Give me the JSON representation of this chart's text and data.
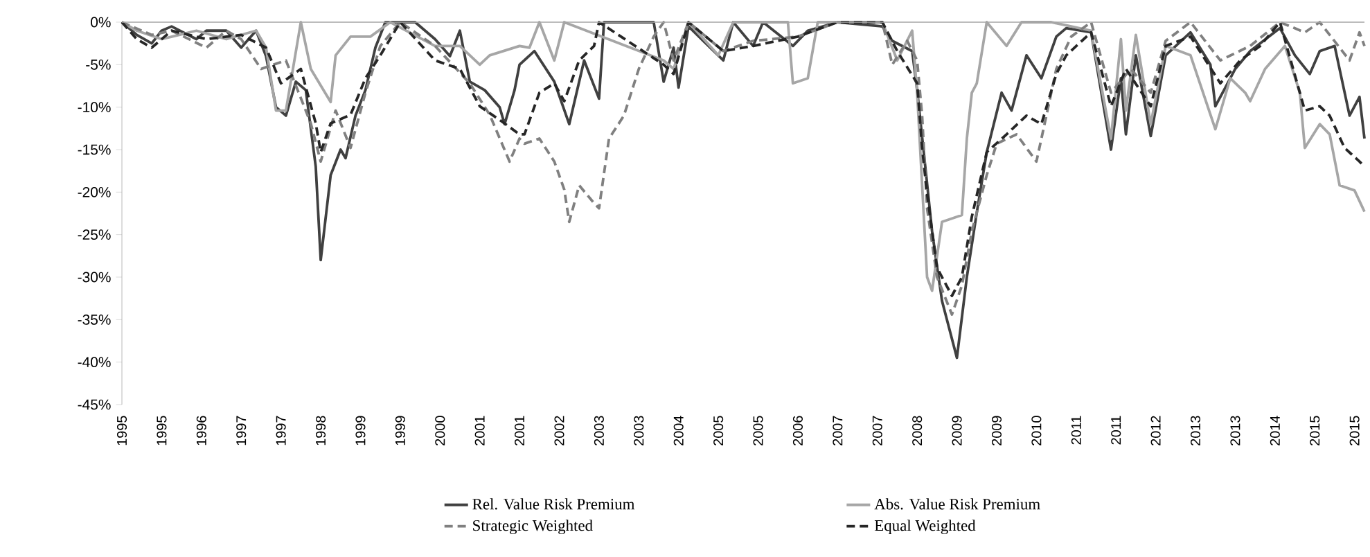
{
  "chart_data": {
    "type": "line",
    "legend": "bottom",
    "xlim": [
      "1995-01",
      "2015-11"
    ],
    "ylim": [
      -45,
      0
    ],
    "xticks": [
      {
        "value": "1995-01",
        "label": "1995"
      },
      {
        "value": "1995-09",
        "label": "1995"
      },
      {
        "value": "1996-05",
        "label": "1996"
      },
      {
        "value": "1997-01",
        "label": "1997"
      },
      {
        "value": "1997-09",
        "label": "1997"
      },
      {
        "value": "1998-05",
        "label": "1998"
      },
      {
        "value": "1999-01",
        "label": "1999"
      },
      {
        "value": "1999-09",
        "label": "1999"
      },
      {
        "value": "2000-05",
        "label": "2000"
      },
      {
        "value": "2001-01",
        "label": "2001"
      },
      {
        "value": "2001-09",
        "label": "2001"
      },
      {
        "value": "2002-05",
        "label": "2002"
      },
      {
        "value": "2003-01",
        "label": "2003"
      },
      {
        "value": "2003-09",
        "label": "2003"
      },
      {
        "value": "2004-05",
        "label": "2004"
      },
      {
        "value": "2005-01",
        "label": "2005"
      },
      {
        "value": "2005-09",
        "label": "2005"
      },
      {
        "value": "2006-05",
        "label": "2006"
      },
      {
        "value": "2007-01",
        "label": "2007"
      },
      {
        "value": "2007-09",
        "label": "2007"
      },
      {
        "value": "2008-05",
        "label": "2008"
      },
      {
        "value": "2009-01",
        "label": "2009"
      },
      {
        "value": "2009-09",
        "label": "2009"
      },
      {
        "value": "2010-05",
        "label": "2010"
      },
      {
        "value": "2011-01",
        "label": "2011"
      },
      {
        "value": "2011-09",
        "label": "2011"
      },
      {
        "value": "2012-05",
        "label": "2012"
      },
      {
        "value": "2013-01",
        "label": "2013"
      },
      {
        "value": "2013-09",
        "label": "2013"
      },
      {
        "value": "2014-05",
        "label": "2014"
      },
      {
        "value": "2015-01",
        "label": "2015"
      },
      {
        "value": "2015-09",
        "label": "2015"
      }
    ],
    "yticks": [
      {
        "value": 0,
        "label": "0%"
      },
      {
        "value": -5,
        "label": "-5%"
      },
      {
        "value": -10,
        "label": "-10%"
      },
      {
        "value": -15,
        "label": "-15%"
      },
      {
        "value": -20,
        "label": "-20%"
      },
      {
        "value": -25,
        "label": "-25%"
      },
      {
        "value": -30,
        "label": "-30%"
      },
      {
        "value": -35,
        "label": "-35%"
      },
      {
        "value": -40,
        "label": "-40%"
      },
      {
        "value": -45,
        "label": "-45%"
      }
    ],
    "series": [
      {
        "name": "Rel. Value Risk Premium",
        "color": "#404040",
        "line_style": "solid",
        "x": [
          "1995-01",
          "1995-04",
          "1995-07",
          "1995-09",
          "1995-11",
          "1996-04",
          "1996-06",
          "1996-10",
          "1997-01",
          "1997-04",
          "1997-06",
          "1997-08",
          "1997-10",
          "1997-12",
          "1998-02",
          "1998-04",
          "1998-05",
          "1998-07",
          "1998-09",
          "1998-10",
          "1998-12",
          "1999-02",
          "1999-04",
          "1999-06",
          "1999-12",
          "2000-04",
          "2000-07",
          "2000-09",
          "2000-11",
          "2001-02",
          "2001-05",
          "2001-06",
          "2001-08",
          "2001-09",
          "2001-12",
          "2002-04",
          "2002-07",
          "2002-10",
          "2003-01",
          "2003-02",
          "2003-05",
          "2003-12",
          "2004-02",
          "2004-04",
          "2004-05",
          "2004-07",
          "2005-02",
          "2005-04",
          "2005-08",
          "2005-10",
          "2006-04",
          "2006-07",
          "2007-01",
          "2007-10",
          "2007-12",
          "2008-04",
          "2008-05",
          "2008-07",
          "2008-08",
          "2008-10",
          "2009-01",
          "2009-03",
          "2009-05",
          "2009-07",
          "2009-10",
          "2009-12",
          "2010-03",
          "2010-06",
          "2010-09",
          "2010-11",
          "2011-04",
          "2011-08",
          "2011-10",
          "2011-11",
          "2012-01",
          "2012-04",
          "2012-07",
          "2012-12",
          "2013-04",
          "2013-05",
          "2013-09",
          "2013-12",
          "2014-06",
          "2014-09",
          "2014-12",
          "2015-02",
          "2015-05",
          "2015-08",
          "2015-10",
          "2015-11"
        ],
        "values": [
          0,
          -1.5,
          -2.5,
          -1,
          -0.5,
          -2,
          -1,
          -1,
          -3,
          -1,
          -4,
          -10,
          -11,
          -7,
          -8,
          -17,
          -28,
          -18,
          -15,
          -16,
          -11,
          -8,
          -3,
          0,
          0,
          -2,
          -4,
          -1,
          -7,
          -8,
          -10,
          -12,
          -8,
          -5,
          -3.4,
          -7,
          -12,
          -4.5,
          -9,
          0,
          0,
          0,
          -7,
          -3,
          -7.7,
          -0.5,
          -4.5,
          0,
          -2.8,
          0,
          -2.8,
          -1,
          0,
          -0.5,
          -2.2,
          -3.4,
          -8,
          -19,
          -24.6,
          -32.8,
          -39.5,
          -30,
          -22.4,
          -15.3,
          -8.3,
          -10.4,
          -3.9,
          -6.6,
          -1.7,
          -0.7,
          -1.2,
          -15,
          -6.6,
          -13.2,
          -3.9,
          -13.4,
          -3.9,
          -1.2,
          -5,
          -9.9,
          -5.5,
          -3.4,
          -0.7,
          -3.9,
          -6.1,
          -3.4,
          -2.8,
          -11,
          -8.8,
          -13.7
        ]
      },
      {
        "name": "Abs. Value Risk Premium",
        "color": "#a6a6a6",
        "line_style": "solid",
        "x": [
          "1995-01",
          "1995-04",
          "1995-09",
          "1996-04",
          "1996-10",
          "1997-04",
          "1997-06",
          "1997-08",
          "1997-10",
          "1998-01",
          "1998-03",
          "1998-07",
          "1998-08",
          "1998-11",
          "1999-03",
          "1999-07",
          "2000-04",
          "2000-09",
          "2001-01",
          "2001-03",
          "2001-09",
          "2001-11",
          "2002-01",
          "2002-04",
          "2002-06",
          "2004-02",
          "2004-04",
          "2004-07",
          "2005-01",
          "2005-04",
          "2006-03",
          "2006-04",
          "2006-07",
          "2006-09",
          "2007-10",
          "2008-01",
          "2008-04",
          "2008-05",
          "2008-07",
          "2008-08",
          "2008-10",
          "2009-02",
          "2009-03",
          "2009-04",
          "2009-05",
          "2009-07",
          "2009-11",
          "2010-02",
          "2010-08",
          "2011-04",
          "2011-08",
          "2011-10",
          "2011-11",
          "2012-01",
          "2012-04",
          "2012-07",
          "2012-12",
          "2013-05",
          "2013-08",
          "2013-11",
          "2013-12",
          "2014-03",
          "2014-07",
          "2014-10",
          "2014-11",
          "2015-02",
          "2015-04",
          "2015-06",
          "2015-09",
          "2015-11"
        ],
        "values": [
          0,
          -1,
          -2,
          -1,
          -2,
          -1,
          -3,
          -10.4,
          -10.4,
          0,
          -5.5,
          -9.4,
          -3.9,
          -1.7,
          -1.7,
          0,
          -2.8,
          -2.8,
          -5,
          -3.9,
          -2.8,
          -3,
          0,
          -4.5,
          0,
          -4.5,
          -5.5,
          0,
          -3.9,
          0,
          0,
          -7.2,
          -6.6,
          0,
          0,
          -4.5,
          -1,
          -8.3,
          -30,
          -31.6,
          -23.5,
          -22.7,
          -13.7,
          -8.3,
          -7.2,
          0,
          -2.8,
          0,
          0,
          -1,
          -13.7,
          -2,
          -10.4,
          -1.5,
          -12,
          -2.8,
          -3.9,
          -12.6,
          -6.6,
          -8.3,
          -9.3,
          -5.5,
          -2.8,
          -8.3,
          -14.8,
          -12,
          -13.2,
          -19.2,
          -19.8,
          -22.3
        ]
      },
      {
        "name": "Strategic Weighted",
        "color": "#808080",
        "line_style": "dashed",
        "x": [
          "1995-01",
          "1995-07",
          "1995-11",
          "1996-06",
          "1996-10",
          "1997-01",
          "1997-05",
          "1997-10",
          "1998-03",
          "1998-05",
          "1998-08",
          "1998-11",
          "1999-02",
          "1999-05",
          "1999-09",
          "2000-04",
          "2000-11",
          "2001-03",
          "2001-07",
          "2001-09",
          "2001-10",
          "2002-01",
          "2002-04",
          "2002-06",
          "2002-07",
          "2002-09",
          "2002-12",
          "2003-01",
          "2003-03",
          "2003-06",
          "2003-09",
          "2003-12",
          "2004-02",
          "2004-04",
          "2004-07",
          "2005-02",
          "2005-08",
          "2006-05",
          "2007-01",
          "2007-10",
          "2007-12",
          "2008-03",
          "2008-05",
          "2008-06",
          "2008-07",
          "2008-09",
          "2008-12",
          "2009-02",
          "2009-04",
          "2009-07",
          "2009-09",
          "2010-01",
          "2010-05",
          "2010-07",
          "2010-09",
          "2010-12",
          "2011-04",
          "2011-08",
          "2011-12",
          "2012-04",
          "2012-07",
          "2012-12",
          "2013-06",
          "2013-12",
          "2014-06",
          "2014-11",
          "2015-02",
          "2015-08",
          "2015-10",
          "2015-11"
        ],
        "values": [
          0,
          -1.5,
          -1,
          -3,
          -1,
          -2,
          -5.5,
          -4.5,
          -11.9,
          -16.4,
          -10.4,
          -14.8,
          -8.3,
          -2.8,
          0,
          -2.8,
          -7.2,
          -10.9,
          -16.4,
          -13.7,
          -14.3,
          -13.7,
          -16.4,
          -19.7,
          -23.5,
          -19.2,
          -21.3,
          -21.9,
          -13.7,
          -11,
          -5.5,
          -1.7,
          0,
          -4.5,
          0,
          -3.4,
          -2.2,
          -1.7,
          0,
          0,
          -5,
          -2.2,
          -4.5,
          -11,
          -21.9,
          -30,
          -34.4,
          -31,
          -24.6,
          -18,
          -14.3,
          -13.2,
          -16.4,
          -11,
          -5.5,
          -1.7,
          0,
          -8.3,
          -5.5,
          -8.3,
          -2.2,
          0,
          -4.5,
          -2.8,
          0,
          -1.2,
          0,
          -4.5,
          -1.2,
          -2.8
        ]
      },
      {
        "name": "Equal Weighted",
        "color": "#262626",
        "line_style": "dashed",
        "x": [
          "1995-01",
          "1995-04",
          "1995-07",
          "1995-11",
          "1996-06",
          "1997-01",
          "1997-06",
          "1997-09",
          "1998-01",
          "1998-04",
          "1998-05",
          "1998-07",
          "1998-11",
          "1999-02",
          "1999-05",
          "1999-09",
          "2000-04",
          "2000-09",
          "2001-01",
          "2001-05",
          "2001-09",
          "2001-10",
          "2002-01",
          "2002-04",
          "2002-06",
          "2002-09",
          "2002-12",
          "2003-01",
          "2004-02",
          "2004-04",
          "2004-07",
          "2005-02",
          "2005-08",
          "2006-05",
          "2007-01",
          "2007-10",
          "2008-01",
          "2008-05",
          "2008-06",
          "2008-07",
          "2008-09",
          "2008-12",
          "2009-02",
          "2009-04",
          "2009-07",
          "2009-11",
          "2010-03",
          "2010-06",
          "2010-09",
          "2010-11",
          "2011-04",
          "2011-08",
          "2011-11",
          "2012-04",
          "2012-07",
          "2012-12",
          "2013-06",
          "2013-10",
          "2014-02",
          "2014-06",
          "2014-11",
          "2015-02",
          "2015-04",
          "2015-07",
          "2015-10",
          "2015-11"
        ],
        "values": [
          0,
          -2,
          -3,
          -1,
          -2,
          -1.5,
          -3,
          -7.2,
          -5.5,
          -11.9,
          -15.3,
          -11.9,
          -10.9,
          -6.6,
          -3.9,
          0,
          -4.5,
          -5.5,
          -9.9,
          -11.5,
          -13.2,
          -13.2,
          -8.3,
          -7.2,
          -9.3,
          -4.5,
          -2.8,
          0,
          -5,
          -6.1,
          0,
          -3.4,
          -2.8,
          -1.7,
          0,
          0,
          -3.4,
          -7.2,
          -14.8,
          -20.2,
          -28.9,
          -32.2,
          -30,
          -22.9,
          -15.3,
          -13.2,
          -11,
          -12,
          -6.1,
          -3.9,
          -1.2,
          -9.9,
          -5.5,
          -9.9,
          -2.8,
          -1.7,
          -7.2,
          -4.5,
          -2.8,
          0,
          -10.4,
          -9.9,
          -11,
          -14.8,
          -16.4,
          -17
        ]
      }
    ]
  }
}
